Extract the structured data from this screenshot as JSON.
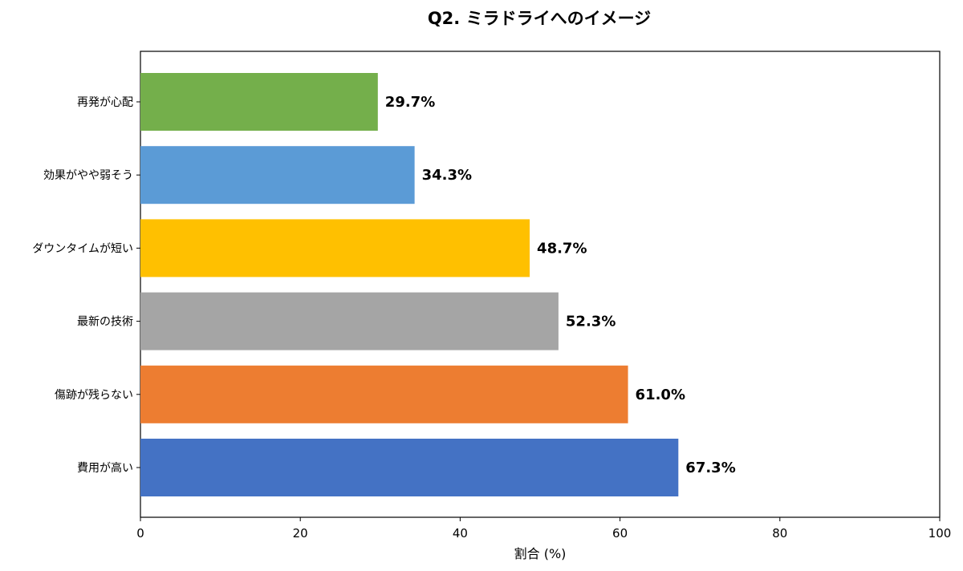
{
  "chart_data": {
    "type": "bar",
    "orientation": "horizontal",
    "title": "Q2. ミラドライへのイメージ",
    "xlabel": "割合 (%)",
    "ylabel": "",
    "xlim": [
      0,
      100
    ],
    "x_ticks": [
      0,
      20,
      40,
      60,
      80,
      100
    ],
    "grid": false,
    "categories": [
      "再発が心配",
      "効果がやや弱そう",
      "ダウンタイムが短い",
      "最新の技術",
      "傷跡が残らない",
      "費用が高い"
    ],
    "values": [
      29.7,
      34.3,
      48.7,
      52.3,
      61.0,
      67.3
    ],
    "value_labels": [
      "29.7%",
      "34.3%",
      "48.7%",
      "52.3%",
      "61.0%",
      "67.3%"
    ],
    "colors": [
      "#74AF4B",
      "#5B9BD6",
      "#FFC000",
      "#A5A5A5",
      "#ED7D31",
      "#4472C4"
    ]
  }
}
